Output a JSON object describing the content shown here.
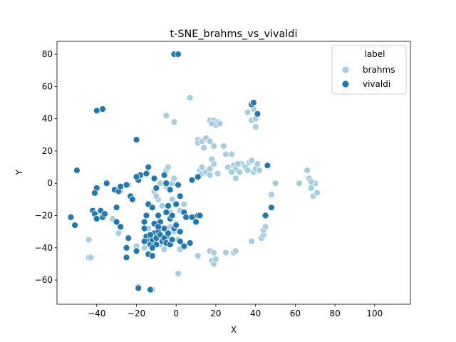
{
  "chart_data": {
    "type": "scatter",
    "title": "t-SNE_brahms_vs_vivaldi",
    "xlabel": "X",
    "ylabel": "Y",
    "xlim": [
      -60,
      118
    ],
    "ylim": [
      -75,
      88
    ],
    "xticks": [
      -40,
      -20,
      0,
      20,
      40,
      60,
      80,
      100
    ],
    "yticks": [
      -60,
      -40,
      -20,
      0,
      20,
      40,
      60,
      80
    ],
    "xtick_labels": [
      "−40",
      "−20",
      "0",
      "20",
      "40",
      "60",
      "80",
      "100"
    ],
    "ytick_labels": [
      "−60",
      "−40",
      "−20",
      "0",
      "20",
      "40",
      "60",
      "80"
    ],
    "grid": false,
    "legend": {
      "title": "label",
      "placement": "top-right"
    },
    "series": [
      {
        "name": "brahms",
        "color": "#a6cee3",
        "points": [
          [
            7,
            53
          ],
          [
            -5,
            42
          ],
          [
            -1,
            38
          ],
          [
            17,
            39
          ],
          [
            19,
            39
          ],
          [
            21,
            38
          ],
          [
            20,
            36
          ],
          [
            18,
            37
          ],
          [
            22,
            37
          ],
          [
            33,
            12
          ],
          [
            35,
            10
          ],
          [
            36,
            8
          ],
          [
            37,
            13
          ],
          [
            38,
            14
          ],
          [
            39,
            7
          ],
          [
            40,
            9
          ],
          [
            41,
            12
          ],
          [
            42,
            8
          ],
          [
            36,
            44
          ],
          [
            38,
            39
          ],
          [
            40,
            40
          ],
          [
            39,
            46
          ],
          [
            40,
            35
          ],
          [
            11,
            27
          ],
          [
            11,
            25
          ],
          [
            13,
            26
          ],
          [
            14,
            22
          ],
          [
            15,
            28
          ],
          [
            17,
            26
          ],
          [
            19,
            23
          ],
          [
            24,
            23
          ],
          [
            25,
            18
          ],
          [
            28,
            18
          ],
          [
            29,
            11
          ],
          [
            30,
            9
          ],
          [
            31,
            12
          ],
          [
            32,
            7
          ],
          [
            26,
            10
          ],
          [
            28,
            7
          ],
          [
            30,
            3
          ],
          [
            12,
            8
          ],
          [
            13,
            6
          ],
          [
            15,
            7
          ],
          [
            17,
            9
          ],
          [
            19,
            12
          ],
          [
            18,
            15
          ],
          [
            21,
            6
          ],
          [
            13,
            10
          ],
          [
            17,
            5
          ],
          [
            -5,
            8
          ],
          [
            -4,
            10
          ],
          [
            -2,
            0
          ],
          [
            -5,
            -2
          ],
          [
            -1,
            3
          ],
          [
            -8,
            0
          ],
          [
            -9,
            -10
          ],
          [
            -11,
            -5
          ],
          [
            -10,
            -8
          ],
          [
            -7,
            -14
          ],
          [
            -2,
            -10
          ],
          [
            -3,
            -18
          ],
          [
            2,
            -17
          ],
          [
            4,
            -13
          ],
          [
            0,
            -25
          ],
          [
            -1,
            -30
          ],
          [
            -3,
            -27
          ],
          [
            1,
            -35
          ],
          [
            2,
            -41
          ],
          [
            1,
            -56
          ],
          [
            11,
            -45
          ],
          [
            17,
            -42
          ],
          [
            19,
            -43
          ],
          [
            18,
            -48
          ],
          [
            19,
            -50
          ],
          [
            20,
            -47
          ],
          [
            25,
            -43
          ],
          [
            29,
            -43
          ],
          [
            30,
            -42
          ],
          [
            38,
            -36
          ],
          [
            43,
            -34
          ],
          [
            44,
            -32
          ],
          [
            44,
            -29
          ],
          [
            45,
            -27
          ],
          [
            48,
            -7
          ],
          [
            50,
            0
          ],
          [
            62,
            0
          ],
          [
            66,
            8
          ],
          [
            67,
            3
          ],
          [
            68,
            -3
          ],
          [
            69,
            -8
          ],
          [
            71,
            -6
          ],
          [
            70,
            0
          ],
          [
            68,
            1
          ],
          [
            -44,
            -35
          ],
          [
            -44,
            -46
          ],
          [
            -43,
            -46
          ],
          [
            -32,
            -22
          ],
          [
            -28,
            -5
          ],
          [
            -29,
            -31
          ],
          [
            -14,
            -28
          ],
          [
            -16,
            -40
          ],
          [
            -20,
            -39
          ],
          [
            -10,
            -33
          ],
          [
            -8,
            -38
          ],
          [
            -6,
            -41
          ],
          [
            -13,
            -44
          ],
          [
            -24,
            -1
          ],
          [
            -19,
            -64
          ],
          [
            -12,
            -66
          ]
        ]
      },
      {
        "name": "vivaldi",
        "color": "#1f78b4",
        "points": [
          [
            -1,
            80
          ],
          [
            1,
            80
          ],
          [
            -40,
            45
          ],
          [
            -37,
            46
          ],
          [
            -20,
            27
          ],
          [
            -50,
            8
          ],
          [
            38,
            49
          ],
          [
            39,
            50
          ],
          [
            41,
            43
          ],
          [
            46,
            11
          ],
          [
            45,
            -20
          ],
          [
            48,
            -15
          ],
          [
            -35,
            0
          ],
          [
            -40,
            -3
          ],
          [
            -41,
            -6
          ],
          [
            -31,
            -4
          ],
          [
            -29,
            -5
          ],
          [
            -28,
            -2
          ],
          [
            -25,
            -1
          ],
          [
            -23,
            -8
          ],
          [
            -22,
            -10
          ],
          [
            -19,
            2
          ],
          [
            -18,
            5
          ],
          [
            -20,
            4
          ],
          [
            -15,
            6
          ],
          [
            -14,
            10
          ],
          [
            -11,
            3
          ],
          [
            -10,
            -3
          ],
          [
            -6,
            5
          ],
          [
            -5,
            0
          ],
          [
            -3,
            -4
          ],
          [
            1,
            -1
          ],
          [
            2,
            -8
          ],
          [
            0,
            -13
          ],
          [
            -4,
            -14
          ],
          [
            -53,
            -21
          ],
          [
            -51,
            -26
          ],
          [
            -42,
            -17
          ],
          [
            -41,
            -19
          ],
          [
            -40,
            -22
          ],
          [
            -38,
            -17
          ],
          [
            -37,
            -21
          ],
          [
            -36,
            -19
          ],
          [
            -30,
            -15
          ],
          [
            -30,
            -24
          ],
          [
            -28,
            -27
          ],
          [
            -25,
            -40
          ],
          [
            -25,
            -46
          ],
          [
            -24,
            -34
          ],
          [
            -20,
            -42
          ],
          [
            -16,
            -24
          ],
          [
            -15,
            -20
          ],
          [
            -14,
            -13
          ],
          [
            -12,
            -15
          ],
          [
            -11,
            -25
          ],
          [
            -9,
            -20
          ],
          [
            -8,
            -24
          ],
          [
            -6,
            -28
          ],
          [
            -5,
            -33
          ],
          [
            -5,
            -18
          ],
          [
            -3,
            -22
          ],
          [
            -2,
            -20
          ],
          [
            -1,
            -28
          ],
          [
            0,
            -26
          ],
          [
            2,
            -30
          ],
          [
            4,
            -18
          ],
          [
            5,
            -21
          ],
          [
            8,
            -21
          ],
          [
            10,
            -24
          ],
          [
            11,
            -20
          ],
          [
            12,
            -20
          ],
          [
            7,
            -37
          ],
          [
            4,
            -39
          ],
          [
            2,
            -36
          ],
          [
            -16,
            -28
          ],
          [
            -15,
            -33
          ],
          [
            -14,
            -36
          ],
          [
            -13,
            -38
          ],
          [
            -12,
            -35
          ],
          [
            -11,
            -31
          ],
          [
            -10,
            -34
          ],
          [
            -10,
            -38
          ],
          [
            -9,
            -30
          ],
          [
            -8,
            -32
          ],
          [
            -7,
            -36
          ],
          [
            -6,
            -34
          ],
          [
            -5,
            -37
          ],
          [
            -4,
            -31
          ],
          [
            -3,
            -38
          ],
          [
            -2,
            -35
          ],
          [
            -9,
            -27
          ],
          [
            -13,
            -32
          ],
          [
            -12,
            -40
          ],
          [
            -14,
            -44
          ],
          [
            -12,
            -45
          ],
          [
            -16,
            -36
          ],
          [
            -19,
            -65
          ],
          [
            -13,
            -66
          ],
          [
            8,
            2
          ],
          [
            11,
            4
          ]
        ]
      }
    ]
  }
}
